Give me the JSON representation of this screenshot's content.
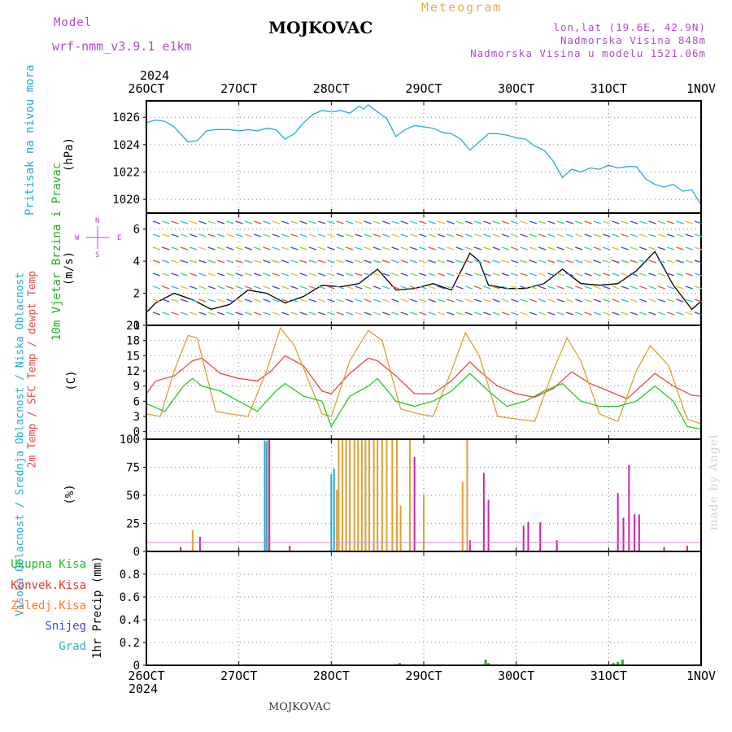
{
  "header": {
    "title": "MOJKOVAC",
    "subtitle": "Meteogram",
    "model_label": "Model",
    "model_name": "wrf-nmm_v3.9.1 e1km",
    "coords": "lon,lat (19.6E, 42.9N)",
    "elevation": "Nadmorska Visina 848m",
    "model_elevation": "Nadmorska Visina u modelu 1521.06m",
    "year_top": "2024",
    "year_bottom": "2024",
    "footer": "MOJKOVAC",
    "credit": "made by Angel"
  },
  "colors": {
    "pressure": "#22aadd",
    "temp2m": "#ee4444",
    "sfc": "#e0a030",
    "dewpt": "#22cc22",
    "high_cloud": "#22aadd",
    "mid_cloud": "#e0a030",
    "low_cloud": "#cc22aa",
    "total_rain": "#22bb22",
    "conv_rain": "#ee3333",
    "frozen": "#ff7722",
    "snow": "#4444ee",
    "hail": "#22bbbb",
    "model": "#b04ad0"
  },
  "chart_data": [
    {
      "type": "line",
      "title": "Pritisak na nivou mora",
      "ylabel": "(hPa)",
      "x_ticks": [
        "26OCT",
        "27OCT",
        "28OCT",
        "29OCT",
        "30OCT",
        "31OCT",
        "1NOV"
      ],
      "ylim": [
        1019,
        1027.2
      ],
      "y_ticks": [
        1020,
        1022,
        1024,
        1026
      ],
      "series": [
        {
          "name": "Pritisak na nivou mora",
          "x_days": [
            0,
            0.1,
            0.2,
            0.3,
            0.45,
            0.55,
            0.65,
            0.75,
            0.9,
            1.0,
            1.1,
            1.2,
            1.3,
            1.4,
            1.5,
            1.6,
            1.7,
            1.8,
            1.9,
            2.0,
            2.1,
            2.2,
            2.3,
            2.35,
            2.4,
            2.5,
            2.6,
            2.7,
            2.8,
            2.9,
            3.0,
            3.1,
            3.2,
            3.3,
            3.4,
            3.5,
            3.6,
            3.7,
            3.8,
            3.9,
            4.0,
            4.1,
            4.2,
            4.3,
            4.4,
            4.5,
            4.6,
            4.7,
            4.8,
            4.9,
            5.0,
            5.1,
            5.2,
            5.3,
            5.4,
            5.5,
            5.6,
            5.7,
            5.8,
            5.9,
            6.0
          ],
          "values": [
            1025.6,
            1025.8,
            1025.7,
            1025.3,
            1024.2,
            1024.3,
            1025.0,
            1025.1,
            1025.1,
            1025.0,
            1025.1,
            1025.0,
            1025.2,
            1025.1,
            1024.4,
            1024.8,
            1025.6,
            1026.2,
            1026.5,
            1026.4,
            1026.5,
            1026.3,
            1026.8,
            1026.6,
            1026.9,
            1026.4,
            1025.9,
            1024.6,
            1025.1,
            1025.4,
            1025.3,
            1025.2,
            1024.9,
            1024.8,
            1024.4,
            1023.6,
            1024.2,
            1024.8,
            1024.8,
            1024.7,
            1024.5,
            1024.4,
            1023.9,
            1023.6,
            1022.8,
            1021.6,
            1022.2,
            1022.0,
            1022.3,
            1022.2,
            1022.5,
            1022.3,
            1022.4,
            1022.4,
            1021.5,
            1021.1,
            1020.9,
            1021.1,
            1020.6,
            1020.7,
            1019.6
          ]
        }
      ]
    },
    {
      "type": "line",
      "title": "10m Vjetar Brzina i Pravac",
      "ylabel": "(m/s)",
      "ylim": [
        0,
        7
      ],
      "y_ticks": [
        0,
        2,
        4,
        6
      ],
      "compass": [
        "N",
        "W",
        "E",
        "S"
      ],
      "series": [
        {
          "name": "Brzina",
          "x_days": [
            0,
            0.1,
            0.3,
            0.5,
            0.7,
            0.9,
            1.1,
            1.3,
            1.5,
            1.7,
            1.9,
            2.1,
            2.3,
            2.5,
            2.7,
            2.9,
            3.1,
            3.3,
            3.5,
            3.6,
            3.7,
            3.9,
            4.1,
            4.3,
            4.5,
            4.7,
            4.9,
            5.1,
            5.3,
            5.5,
            5.7,
            5.9,
            6.0
          ],
          "values": [
            0.8,
            1.4,
            2.0,
            1.6,
            1.0,
            1.3,
            2.2,
            2.0,
            1.4,
            1.8,
            2.5,
            2.4,
            2.6,
            3.5,
            2.2,
            2.3,
            2.6,
            2.2,
            4.5,
            4.0,
            2.5,
            2.3,
            2.3,
            2.6,
            3.5,
            2.6,
            2.5,
            2.6,
            3.4,
            4.6,
            2.5,
            1.0,
            1.5
          ]
        }
      ]
    },
    {
      "type": "line",
      "title": "2m Temp / SFC Temp / dewpt Temp",
      "ylabel": "(C)",
      "ylim": [
        -1.5,
        21
      ],
      "y_ticks": [
        0,
        3,
        6,
        9,
        12,
        15,
        18,
        21
      ],
      "series": [
        {
          "name": "2m Temp",
          "x_days": [
            0,
            0.1,
            0.3,
            0.5,
            0.6,
            0.8,
            1.0,
            1.2,
            1.35,
            1.5,
            1.7,
            1.9,
            2.0,
            2.2,
            2.4,
            2.5,
            2.7,
            2.9,
            3.1,
            3.3,
            3.5,
            3.6,
            3.8,
            4.0,
            4.2,
            4.4,
            4.6,
            4.8,
            5.0,
            5.2,
            5.4,
            5.5,
            5.7,
            5.9,
            6.0
          ],
          "values": [
            7.5,
            10,
            11,
            14,
            14.5,
            11.5,
            10.5,
            10,
            12,
            15,
            13,
            8,
            7.5,
            11.5,
            14.5,
            14,
            11,
            7.5,
            7.5,
            10,
            13.8,
            12,
            9,
            7.5,
            6.8,
            8.5,
            11.8,
            9.5,
            8,
            6.5,
            9.8,
            11.5,
            9,
            7.2,
            7
          ]
        },
        {
          "name": "SFC Temp",
          "x_days": [
            0,
            0.15,
            0.3,
            0.45,
            0.55,
            0.75,
            0.9,
            1.1,
            1.3,
            1.45,
            1.6,
            1.9,
            2.0,
            2.2,
            2.4,
            2.55,
            2.75,
            2.95,
            3.1,
            3.3,
            3.45,
            3.6,
            3.8,
            4.0,
            4.2,
            4.4,
            4.55,
            4.7,
            4.9,
            5.1,
            5.3,
            5.45,
            5.65,
            5.85,
            6.0
          ],
          "values": [
            3.5,
            3.0,
            12,
            19,
            18.5,
            4,
            3.5,
            3,
            12,
            20.5,
            17,
            3.5,
            3,
            14,
            20,
            18,
            4.5,
            3.5,
            3,
            12,
            19.5,
            15,
            3,
            2.5,
            2,
            12,
            18.5,
            14,
            3.5,
            2,
            12,
            17,
            13,
            2.5,
            1.5
          ]
        },
        {
          "name": "dewpt Temp",
          "x_days": [
            0,
            0.2,
            0.4,
            0.5,
            0.6,
            0.8,
            1.0,
            1.2,
            1.4,
            1.5,
            1.7,
            1.9,
            2.0,
            2.2,
            2.4,
            2.5,
            2.7,
            2.9,
            3.1,
            3.3,
            3.5,
            3.7,
            3.9,
            4.1,
            4.3,
            4.5,
            4.7,
            4.9,
            5.1,
            5.3,
            5.5,
            5.7,
            5.85,
            6.0
          ],
          "values": [
            5.5,
            4,
            9,
            10.5,
            9,
            8,
            6,
            4,
            8,
            9.5,
            7,
            6,
            1,
            7,
            9,
            10.5,
            6,
            5,
            6,
            8,
            11.5,
            8,
            5,
            6,
            8,
            9.5,
            6,
            5,
            5,
            6,
            9,
            6,
            1,
            0.5
          ]
        }
      ]
    },
    {
      "type": "bar",
      "title": "Visoka Oblacnost / Srednja Oblacnost / Niska Oblacnost",
      "ylabel": "(%)",
      "ylim": [
        0,
        100
      ],
      "y_ticks": [
        0,
        25,
        50,
        75,
        100
      ],
      "series": [
        {
          "name": "Visoka Oblacnost",
          "x_days": [
            1.28,
            1.3,
            2.0,
            2.03
          ],
          "values": [
            99,
            98,
            69,
            74
          ]
        },
        {
          "name": "Srednja Oblacnost",
          "x_days": [
            0.5,
            1.31,
            2.06,
            2.08,
            2.12,
            2.16,
            2.2,
            2.25,
            2.29,
            2.33,
            2.37,
            2.41,
            2.46,
            2.5,
            2.55,
            2.6,
            2.66,
            2.71,
            2.75,
            2.85,
            3.0,
            3.42,
            3.47
          ],
          "values": [
            19,
            99,
            55,
            100,
            100,
            100,
            100,
            100,
            100,
            100,
            100,
            100,
            100,
            100,
            100,
            100,
            100,
            100,
            41,
            100,
            51,
            62,
            100
          ]
        },
        {
          "name": "Niska Oblacnost",
          "x_days": [
            0.37,
            0.58,
            1.33,
            1.55,
            2.9,
            3.5,
            3.65,
            3.7,
            4.08,
            4.13,
            4.26,
            4.44,
            5.1,
            5.16,
            5.22,
            5.28,
            5.33,
            5.6,
            5.85
          ],
          "values": [
            4,
            13,
            100,
            5,
            84,
            10,
            70,
            46,
            23,
            26,
            26,
            10,
            52,
            30,
            77,
            33,
            33,
            4,
            5
          ]
        }
      ]
    },
    {
      "type": "bar",
      "title": "1hr Precip",
      "ylabel": "1hr Precip (mm)",
      "ylim": [
        0,
        1.0
      ],
      "y_ticks": [
        0,
        0.2,
        0.4,
        0.6,
        0.8
      ],
      "legend": [
        "Ukupna Kisa",
        "Konvek.Kisa",
        "Zaledj.Kisa",
        "Snijeg",
        "Grad"
      ],
      "series": [
        {
          "name": "Ukupna Kisa",
          "x_days": [
            2.7,
            2.74,
            2.78,
            2.9,
            3.67,
            3.7,
            5.05,
            5.1,
            5.15
          ],
          "values": [
            0.01,
            0.02,
            0.01,
            0.01,
            0.05,
            0.02,
            0.02,
            0.03,
            0.05
          ]
        },
        {
          "name": "Konvek.Kisa",
          "x_days": [
            0.5,
            3.7
          ],
          "values": [
            0.005,
            0.01
          ]
        }
      ]
    }
  ],
  "axes": {
    "x_ticks": [
      "26OCT",
      "27OCT",
      "28OCT",
      "29OCT",
      "30OCT",
      "31OCT",
      "1NOV"
    ]
  }
}
